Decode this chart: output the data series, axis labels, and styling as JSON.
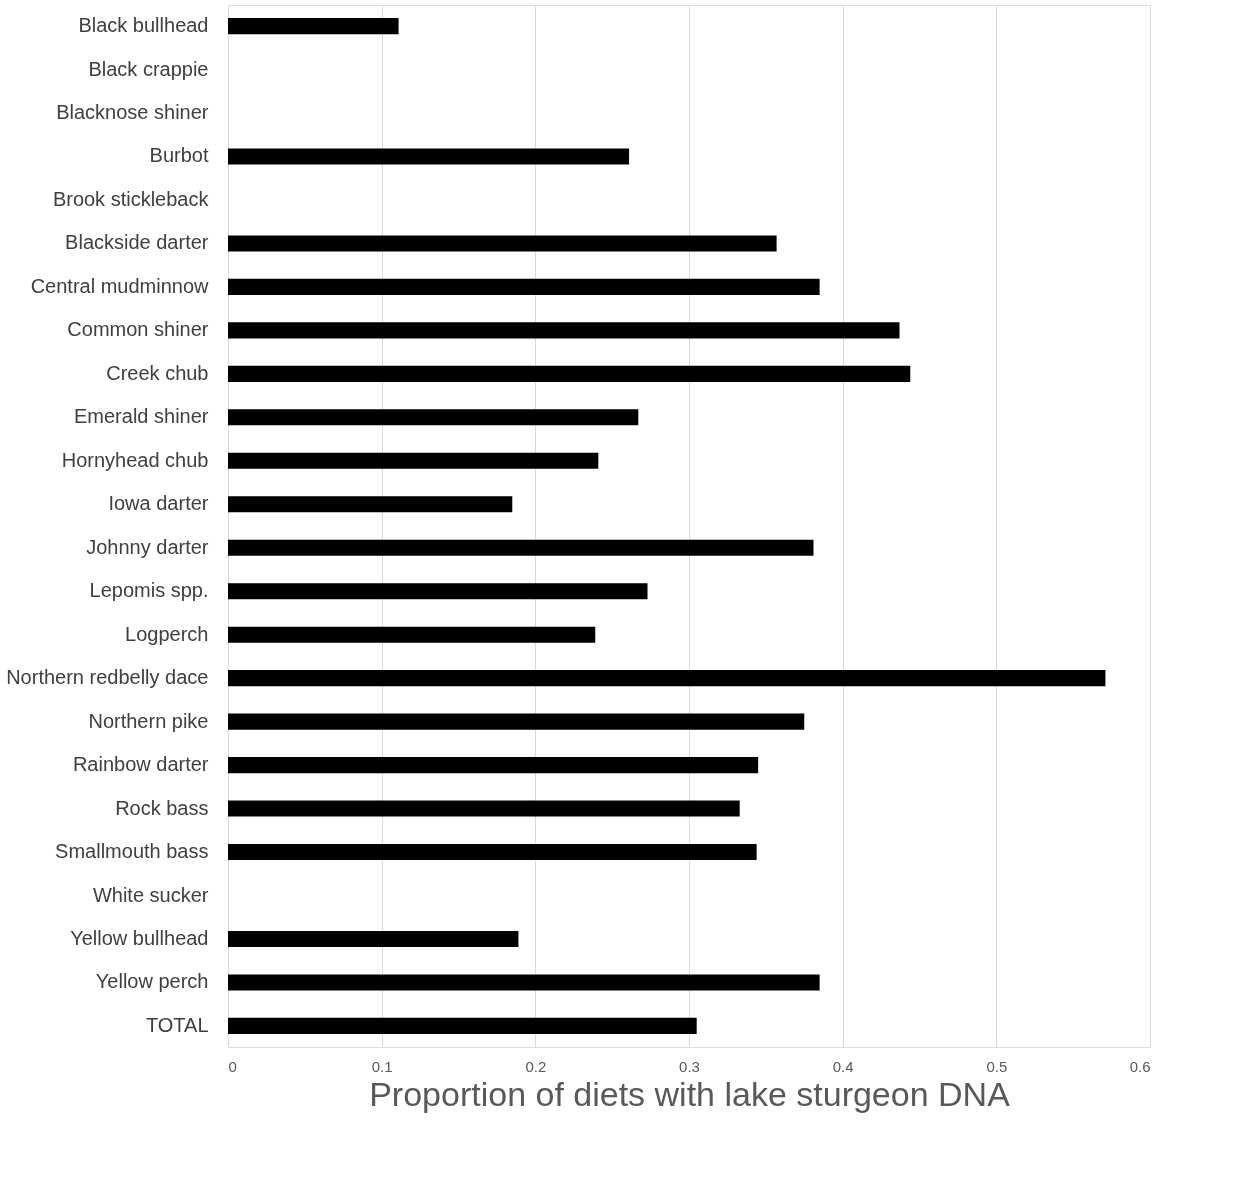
{
  "chart_data": {
    "type": "bar",
    "orientation": "horizontal",
    "xlabel": "Proportion of diets with lake sturgeon DNA",
    "categories": [
      "Black bullhead",
      "Black crappie",
      "Blacknose shiner",
      "Burbot",
      "Brook stickleback",
      "Blackside darter",
      "Central mudminnow",
      "Common shiner",
      "Creek chub",
      "Emerald shiner",
      "Hornyhead chub",
      "Iowa darter",
      "Johnny darter",
      "Lepomis spp.",
      "Logperch",
      "Northern redbelly dace",
      "Northern pike",
      "Rainbow darter",
      "Rock bass",
      "Smallmouth bass",
      "White sucker",
      "Yellow bullhead",
      "Yellow perch",
      "TOTAL"
    ],
    "values": [
      0.111,
      0,
      0,
      0.261,
      0,
      0.357,
      0.385,
      0.437,
      0.444,
      0.267,
      0.241,
      0.185,
      0.381,
      0.273,
      0.239,
      0.571,
      0.375,
      0.345,
      0.333,
      0.344,
      0,
      0.189,
      0.385,
      0.305
    ],
    "color": "#000000",
    "xlim": [
      0,
      0.6
    ],
    "xticks": [
      0,
      0.1,
      0.2,
      0.3,
      0.4,
      0.5,
      0.6
    ],
    "grid": "x"
  }
}
